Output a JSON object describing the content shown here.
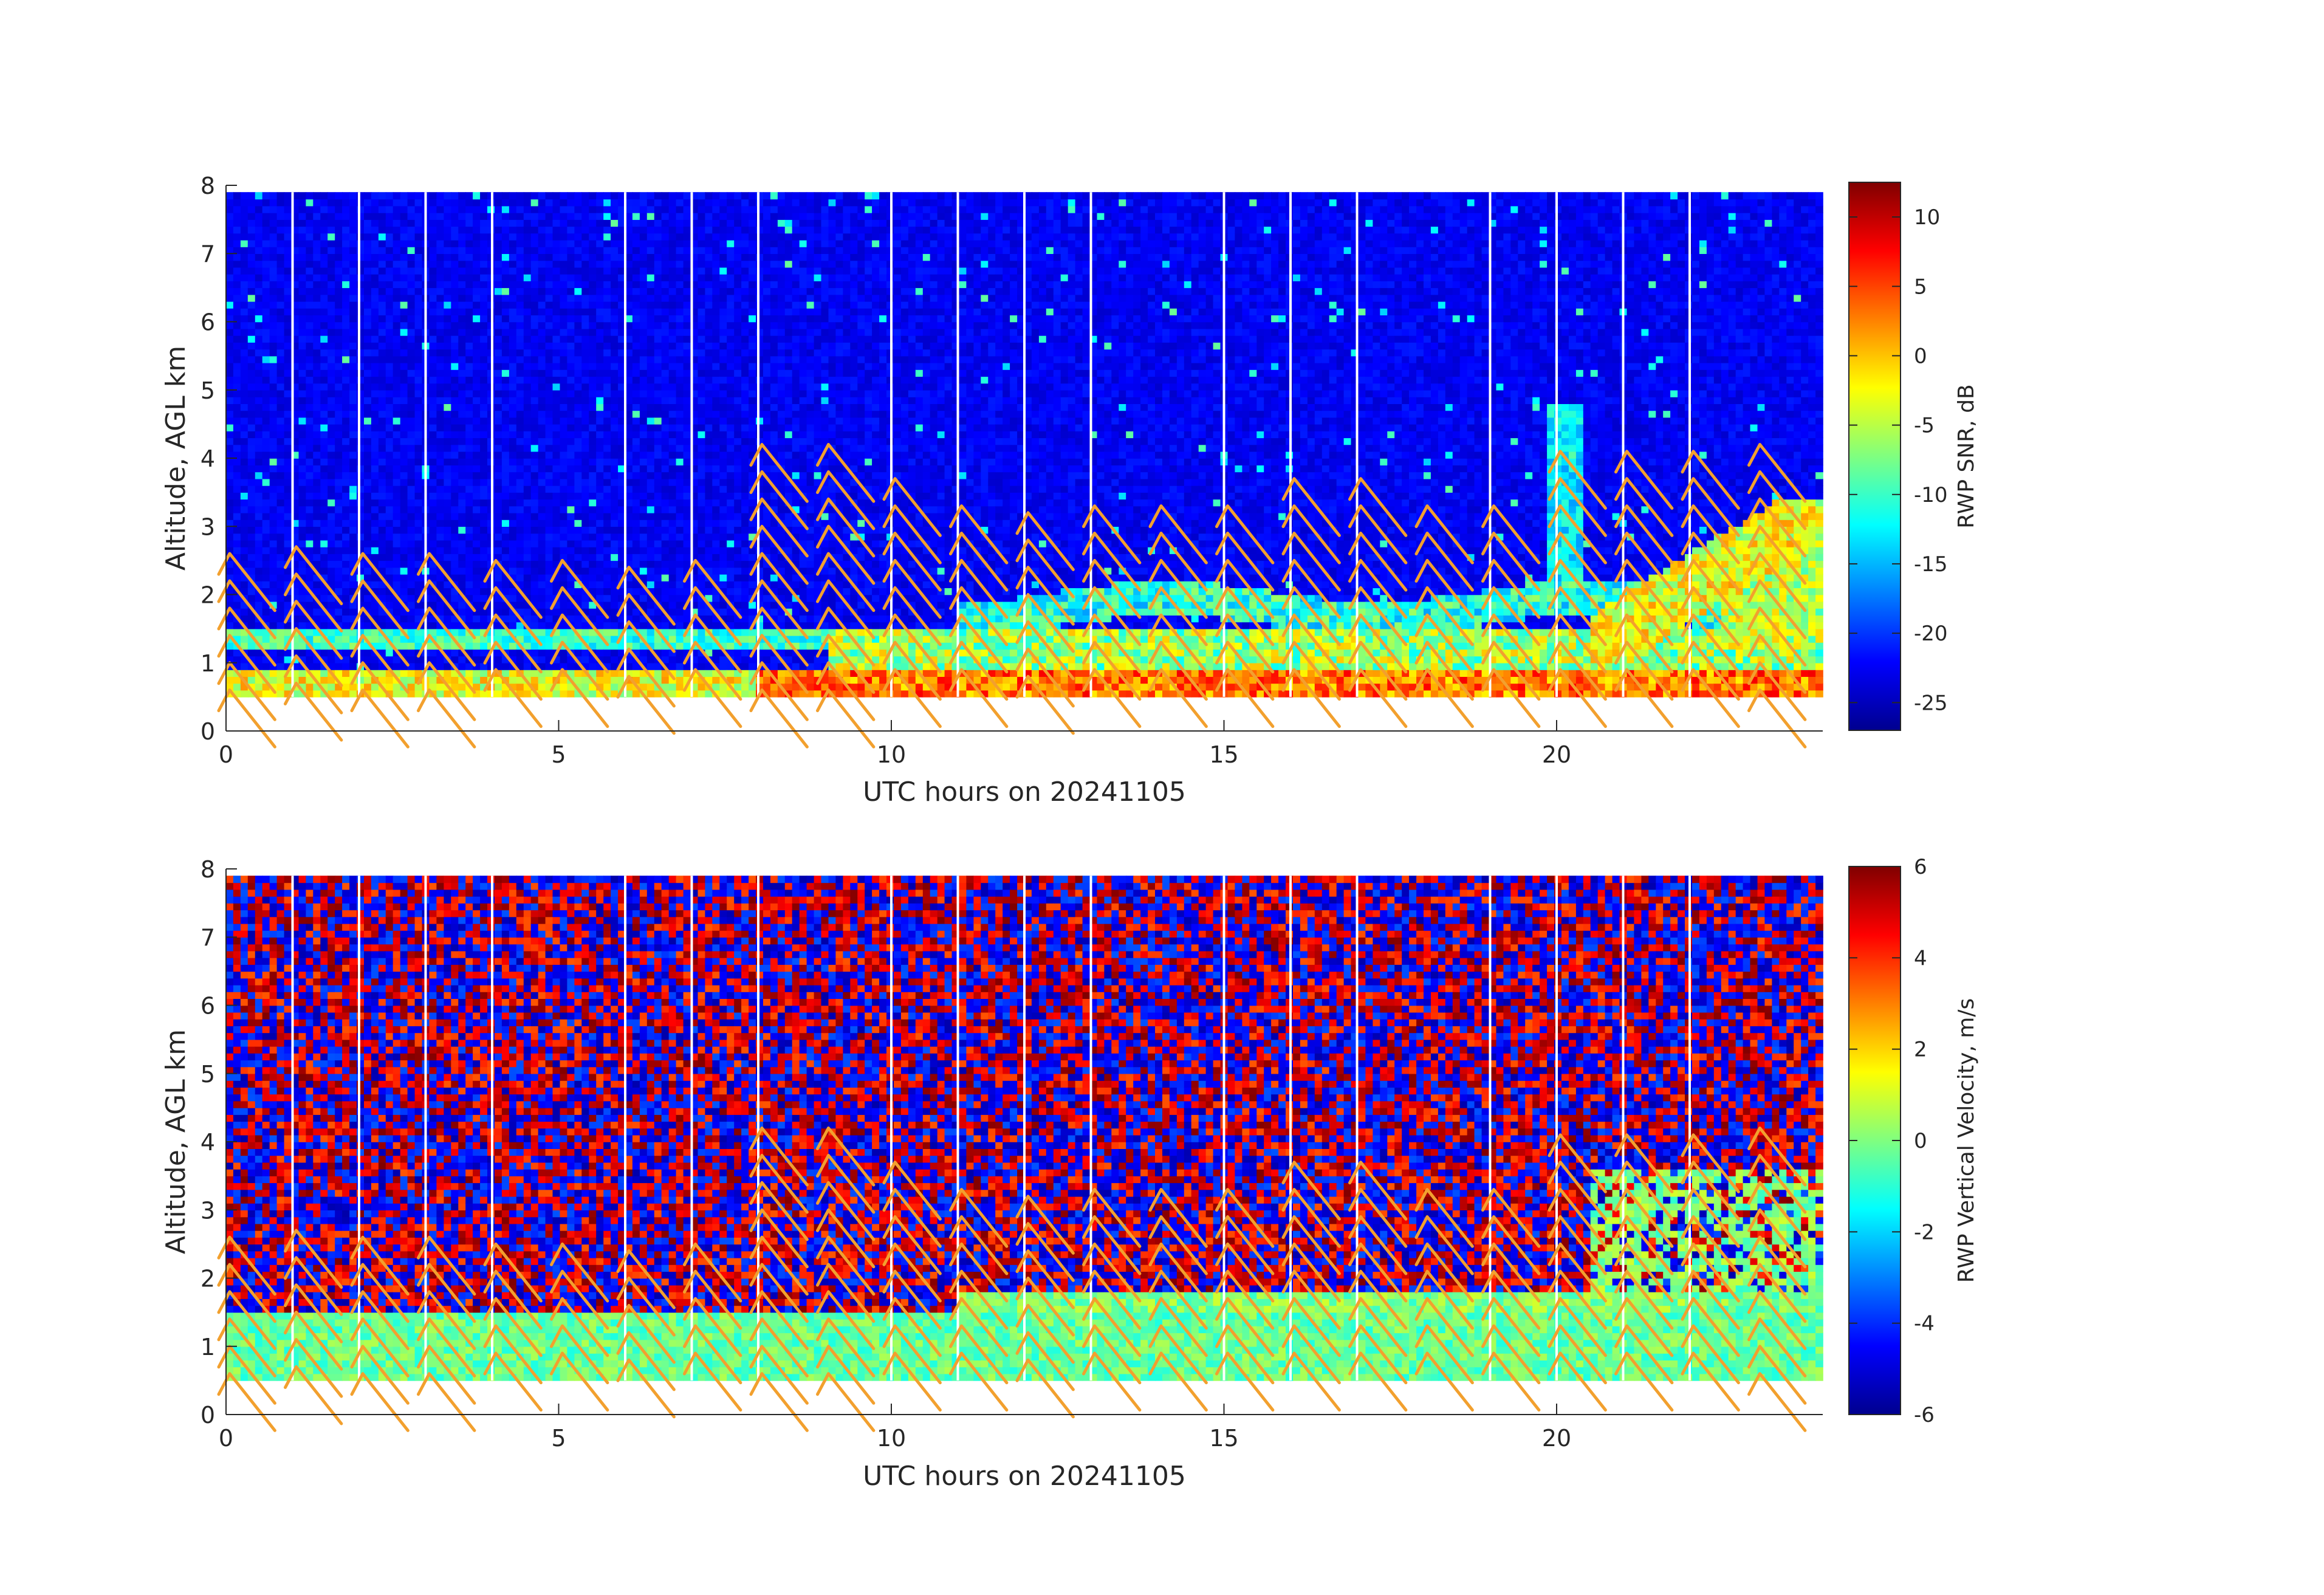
{
  "chart_data": [
    {
      "type": "heatmap",
      "title": "",
      "xlabel": "UTC hours on 20241105",
      "ylabel": "Altitude, AGL km",
      "xlim": [
        0,
        24
      ],
      "ylim": [
        0,
        8
      ],
      "xticks": [
        0,
        5,
        10,
        15,
        20
      ],
      "yticks": [
        0,
        1,
        2,
        3,
        4,
        5,
        6,
        7,
        8
      ],
      "colormap": "jet",
      "colorbar": {
        "label": "RWP SNR, dB",
        "range": [
          -27,
          12.5
        ],
        "ticks": [
          10,
          5,
          0,
          -5,
          -10,
          -15,
          -20,
          -25
        ]
      },
      "data_altitude_range_km": [
        0.5,
        7.9
      ],
      "gap_hours": [
        1,
        2,
        3,
        4,
        6,
        7,
        8,
        10,
        11,
        12,
        13,
        15,
        16,
        17,
        19,
        20,
        21,
        22
      ],
      "wind_barb_color": "#f2a02e",
      "wind_barb_hours": [
        0,
        1,
        2,
        3,
        4,
        5,
        6,
        7,
        8,
        9,
        10,
        11,
        12,
        13,
        14,
        15,
        16,
        17,
        18,
        19,
        20,
        21,
        22,
        23
      ],
      "wind_barb_top_km": [
        2.6,
        2.7,
        2.6,
        2.6,
        2.5,
        2.5,
        2.4,
        2.5,
        4.2,
        4.2,
        3.7,
        3.3,
        3.2,
        3.3,
        3.3,
        3.3,
        3.7,
        3.7,
        3.3,
        3.3,
        4.1,
        4.1,
        4.1,
        4.2
      ]
    },
    {
      "type": "heatmap",
      "title": "",
      "xlabel": "UTC hours on 20241105",
      "ylabel": "Altitude, AGL km",
      "xlim": [
        0,
        24
      ],
      "ylim": [
        0,
        8
      ],
      "xticks": [
        0,
        5,
        10,
        15,
        20
      ],
      "yticks": [
        0,
        1,
        2,
        3,
        4,
        5,
        6,
        7,
        8
      ],
      "colormap": "jet",
      "colorbar": {
        "label": "RWP Vertical Velocity, m/s",
        "range": [
          -6,
          6
        ],
        "ticks": [
          6,
          4,
          2,
          0,
          -2,
          -4,
          -6
        ]
      },
      "data_altitude_range_km": [
        0.5,
        7.9
      ],
      "gap_hours": [
        1,
        2,
        3,
        4,
        6,
        7,
        8,
        10,
        11,
        12,
        13,
        15,
        16,
        17,
        19,
        20,
        21,
        22
      ],
      "wind_barb_color": "#f2a02e",
      "wind_barb_hours": [
        0,
        1,
        2,
        3,
        4,
        5,
        6,
        7,
        8,
        9,
        10,
        11,
        12,
        13,
        14,
        15,
        16,
        17,
        18,
        19,
        20,
        21,
        22,
        23
      ],
      "wind_barb_top_km": [
        2.6,
        2.7,
        2.6,
        2.6,
        2.5,
        2.5,
        2.4,
        2.5,
        4.2,
        4.2,
        3.7,
        3.3,
        3.2,
        3.3,
        3.3,
        3.3,
        3.7,
        3.7,
        3.3,
        3.3,
        4.1,
        4.1,
        4.1,
        4.2
      ]
    }
  ]
}
